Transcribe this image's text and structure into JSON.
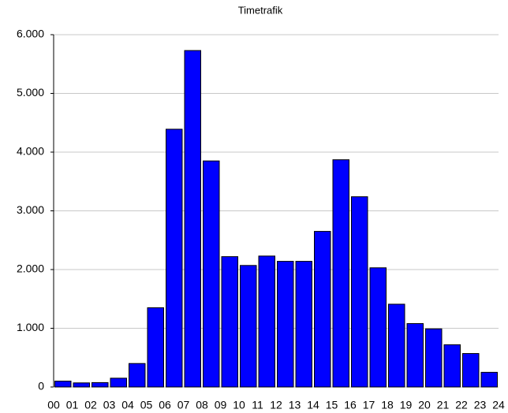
{
  "chart_data": {
    "type": "histogram",
    "title": "Timetrafik",
    "bins": [
      0,
      1,
      2,
      3,
      4,
      5,
      6,
      7,
      8,
      9,
      10,
      11,
      12,
      13,
      14,
      15,
      16,
      17,
      18,
      19,
      20,
      21,
      22,
      23,
      24
    ],
    "values": [
      100,
      70,
      75,
      150,
      400,
      1350,
      4390,
      5730,
      3850,
      2220,
      2070,
      2230,
      2140,
      2140,
      2650,
      3870,
      3240,
      2030,
      1410,
      1080,
      990,
      720,
      570,
      250
    ],
    "color": "#0000ff",
    "xlim": [
      0,
      24
    ],
    "xticks": [
      {
        "value": 0,
        "label": "00"
      },
      {
        "value": 1,
        "label": "01"
      },
      {
        "value": 2,
        "label": "02"
      },
      {
        "value": 3,
        "label": "03"
      },
      {
        "value": 4,
        "label": "04"
      },
      {
        "value": 5,
        "label": "05"
      },
      {
        "value": 6,
        "label": "06"
      },
      {
        "value": 7,
        "label": "07"
      },
      {
        "value": 8,
        "label": "08"
      },
      {
        "value": 9,
        "label": "09"
      },
      10,
      11,
      12,
      13,
      14,
      15,
      16,
      17,
      18,
      19,
      20,
      21,
      22,
      23,
      24
    ],
    "ylim": [
      0,
      6000
    ],
    "yticks": [
      0,
      {
        "value": 1000,
        "label": "1.000"
      },
      {
        "value": 2000,
        "label": "2.000"
      },
      {
        "value": 3000,
        "label": "3.000"
      },
      {
        "value": 4000,
        "label": "4.000"
      },
      {
        "value": 5000,
        "label": "5.000"
      },
      {
        "value": 6000,
        "label": "6.000"
      }
    ],
    "grid": true
  }
}
